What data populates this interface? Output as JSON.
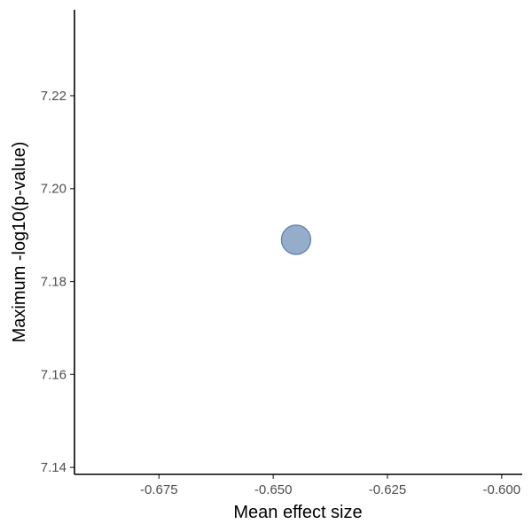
{
  "chart_data": {
    "type": "scatter",
    "title": "",
    "xlabel": "Mean effect size",
    "ylabel": "Maximum -log10(p-value)",
    "x_ticks": [
      -0.675,
      -0.65,
      -0.625,
      -0.6
    ],
    "x_tick_labels": [
      "-0.675",
      "-0.650",
      "-0.625",
      "-0.600"
    ],
    "y_ticks": [
      7.14,
      7.16,
      7.18,
      7.2,
      7.22
    ],
    "y_tick_labels": [
      "7.14",
      "7.16",
      "7.18",
      "7.20",
      "7.22"
    ],
    "xlim": [
      -0.6935,
      -0.5955
    ],
    "ylim": [
      7.1385,
      7.2385
    ],
    "grid": false,
    "legend": "none",
    "point_color": "#7b97bd",
    "point_stroke": "#5d7fab",
    "points": [
      {
        "x": -0.645,
        "y": 7.189
      }
    ]
  }
}
